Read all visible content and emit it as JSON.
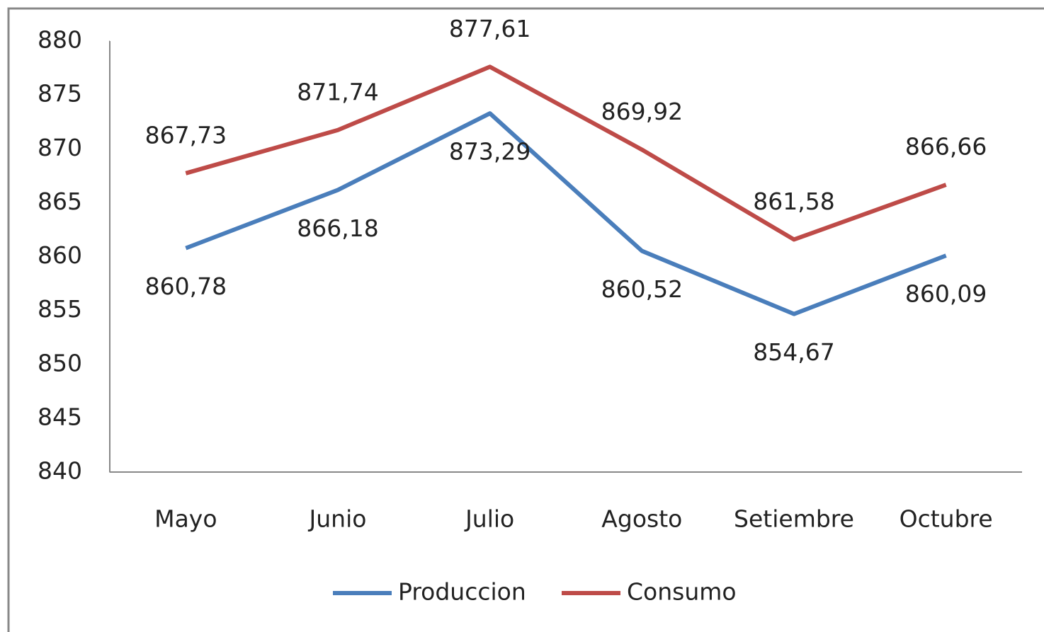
{
  "chart_data": {
    "type": "line",
    "categories": [
      "Mayo",
      "Junio",
      "Julio",
      "Agosto",
      "Setiembre",
      "Octubre"
    ],
    "series": [
      {
        "name": "Produccion",
        "color": "#4a7ebb",
        "values": [
          860.78,
          866.18,
          873.29,
          860.52,
          854.67,
          860.09
        ],
        "value_labels": [
          "860,78",
          "866,18",
          "873,29",
          "860,52",
          "854,67",
          "860,09"
        ]
      },
      {
        "name": "Consumo",
        "color": "#be4b48",
        "values": [
          867.73,
          871.74,
          877.61,
          869.92,
          861.58,
          866.66
        ],
        "value_labels": [
          "867,73",
          "871,74",
          "877,61",
          "869,92",
          "861,58",
          "866,66"
        ]
      }
    ],
    "ylim": [
      840,
      880
    ],
    "yticks": [
      840,
      845,
      850,
      855,
      860,
      865,
      870,
      875,
      880
    ],
    "grid": false,
    "legend": "bottom"
  }
}
